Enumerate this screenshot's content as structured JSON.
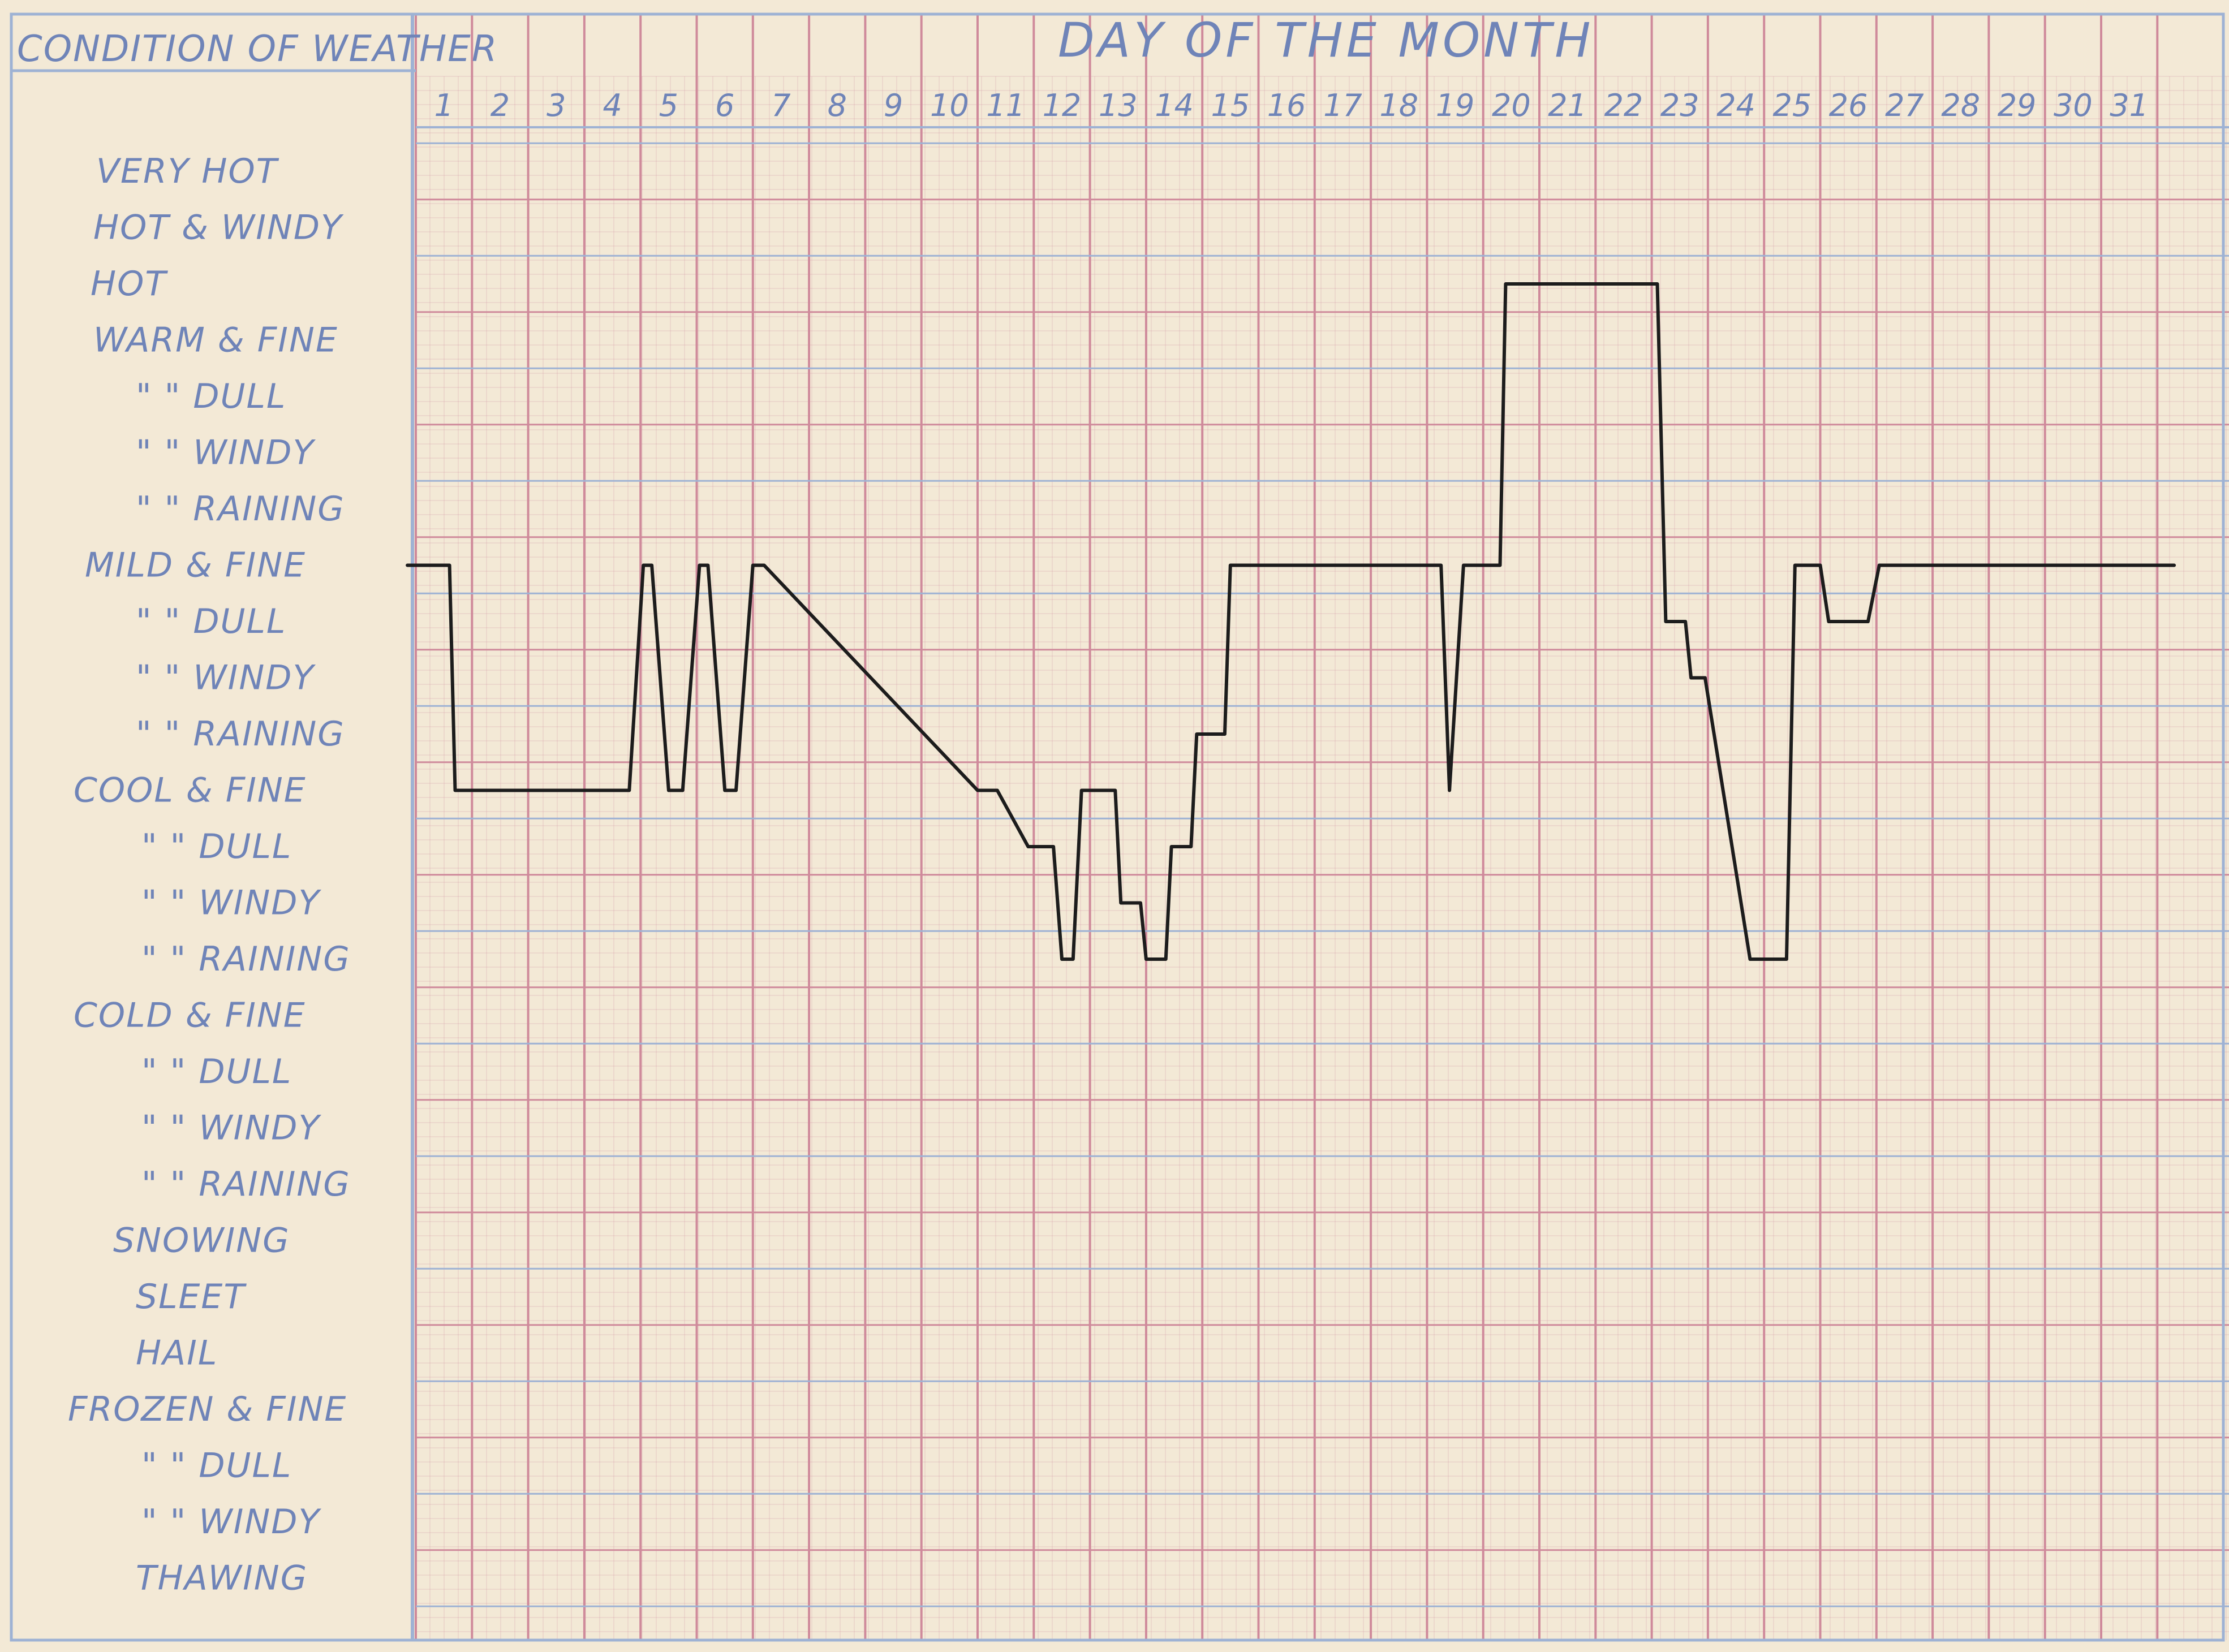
{
  "colors": {
    "paper": "#f3e9d6",
    "grid_red": "#cf8a9b",
    "grid_blue": "#9eb2d4",
    "ink": "#6f84b8",
    "trace": "#1c1c1c"
  },
  "chart_data": {
    "type": "line",
    "title": "DAY OF THE MONTH",
    "ylabel": "CONDITION OF WEATHER",
    "xlabel": "",
    "grid": true,
    "x_ticks": [
      "1",
      "2",
      "3",
      "4",
      "5",
      "6",
      "7",
      "8",
      "9",
      "10",
      "11",
      "12",
      "13",
      "14",
      "15",
      "16",
      "17",
      "18",
      "19",
      "20",
      "21",
      "22",
      "23",
      "24",
      "25",
      "26",
      "27",
      "28",
      "29",
      "30",
      "31"
    ],
    "y_categories": [
      "VERY HOT",
      "HOT & WINDY",
      "HOT",
      "WARM & FINE",
      "\"    \" DULL",
      "\"    \" WINDY",
      "\"    \" RAINING",
      "MILD & FINE",
      "\"    \" DULL",
      "\"    \" WINDY",
      "\"    \" RAINING",
      "COOL & FINE",
      "\"    \" DULL",
      "\"    \" WINDY",
      "\"    \" RAINING",
      "COLD & FINE",
      "\"    \" DULL",
      "\"    \" WINDY",
      "\"    \" RAINING",
      "SNOWING",
      "SLEET",
      "HAIL",
      "FROZEN & FINE",
      "\"    \" DULL",
      "\"    \" WINDY",
      "THAWING"
    ],
    "series": [
      {
        "x": [
          0.35,
          1.1,
          1.2,
          4.3,
          4.55,
          4.7,
          5.0,
          5.25,
          5.55,
          5.7,
          6.0,
          6.2,
          6.5,
          6.7,
          10.5,
          10.85,
          11.4,
          11.85,
          12.0,
          12.2,
          12.35,
          12.95,
          13.05,
          13.4,
          13.5,
          13.85,
          13.95,
          14.3,
          14.4,
          14.9,
          15.0,
          18.75,
          18.9,
          19.15,
          19.8,
          19.9,
          22.6,
          22.75,
          23.1,
          23.2,
          23.45,
          24.25,
          24.9,
          25.05,
          25.5,
          25.65,
          26.35,
          26.55,
          31.8
        ],
        "y": [
          "MILD & FINE",
          "MILD & FINE",
          "COOL & FINE",
          "COOL & FINE",
          "MILD & FINE",
          "MILD & FINE",
          "COOL & FINE",
          "COOL & FINE",
          "MILD & FINE",
          "MILD & FINE",
          "COOL & FINE",
          "COOL & FINE",
          "MILD & FINE",
          "MILD & FINE",
          "COOL & FINE",
          "COOL & FINE",
          "COOL & DULL",
          "COOL & DULL",
          "COOL & RAINING",
          "COOL & RAINING",
          "COOL & FINE",
          "COOL & FINE",
          "COOL & WINDY",
          "COOL & WINDY",
          "COOL & RAINING",
          "COOL & RAINING",
          "COOL & DULL",
          "COOL & DULL",
          "MILD & RAINING",
          "MILD & RAINING",
          "MILD & FINE",
          "MILD & FINE",
          "COOL & FINE",
          "MILD & FINE",
          "MILD & FINE",
          "HOT",
          "HOT",
          "MILD & DULL",
          "MILD & DULL",
          "MILD & WINDY",
          "MILD & WINDY",
          "COOL & RAINING",
          "COOL & RAINING",
          "MILD & FINE",
          "MILD & FINE",
          "MILD & DULL",
          "MILD & DULL",
          "MILD & FINE",
          "MILD & FINE"
        ]
      }
    ]
  }
}
